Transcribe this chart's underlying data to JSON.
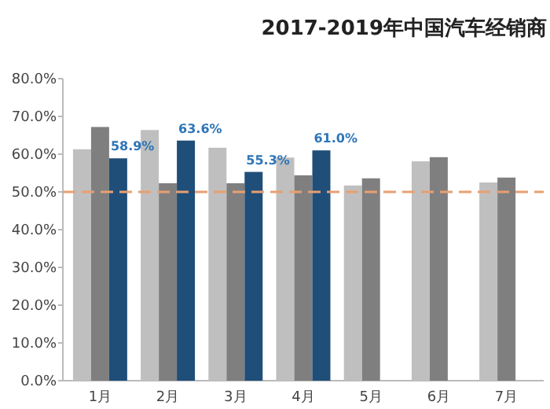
{
  "chart_data": {
    "type": "bar",
    "title": "2017-2019年中国汽车经销商",
    "categories": [
      "1月",
      "2月",
      "3月",
      "4月",
      "5月",
      "6月",
      "7月"
    ],
    "series": [
      {
        "color": "#bfbfbf",
        "values": [
          61.3,
          66.4,
          61.7,
          59.1,
          51.7,
          58.1,
          52.5
        ]
      },
      {
        "color": "#7f7f7f",
        "values": [
          67.2,
          52.3,
          52.3,
          54.4,
          53.6,
          59.2,
          53.8
        ]
      },
      {
        "color": "#1f4e79",
        "values": [
          58.9,
          63.6,
          55.3,
          61.0,
          null,
          null,
          null
        ],
        "value_labels": [
          "58.9%",
          "63.6%",
          "55.3%",
          "61.0%",
          null,
          null,
          null
        ]
      }
    ],
    "ylim": [
      0,
      80
    ],
    "yticks": [
      {
        "value": 0,
        "label": "0.0%"
      },
      {
        "value": 10,
        "label": "10.0%"
      },
      {
        "value": 20,
        "label": "20.0%"
      },
      {
        "value": 30,
        "label": "30.0%"
      },
      {
        "value": 40,
        "label": "40.0%"
      },
      {
        "value": 50,
        "label": "50.0%"
      },
      {
        "value": 60,
        "label": "60.0%"
      },
      {
        "value": 70,
        "label": "70.0%"
      },
      {
        "value": 80,
        "label": "80.0%"
      }
    ],
    "ref_lines": [
      {
        "axis": "y",
        "value": 50,
        "color": "#e8a070",
        "line_style": "dashed"
      }
    ],
    "grid": false
  }
}
